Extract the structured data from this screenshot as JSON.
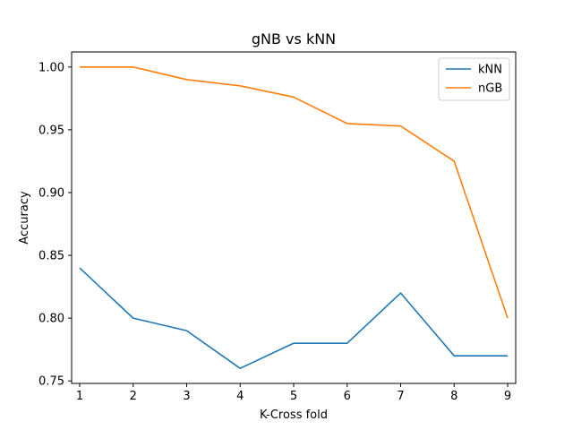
{
  "chart_data": {
    "type": "line",
    "title": "gNB vs kNN",
    "xlabel": "K-Cross fold",
    "ylabel": "Accuracy",
    "x": [
      1,
      2,
      3,
      4,
      5,
      6,
      7,
      8,
      9
    ],
    "xticks": [
      "1",
      "2",
      "3",
      "4",
      "5",
      "6",
      "7",
      "8",
      "9"
    ],
    "yticks": [
      "0.75",
      "0.80",
      "0.85",
      "0.90",
      "0.95",
      "1.00"
    ],
    "ytick_values": [
      0.75,
      0.8,
      0.85,
      0.9,
      0.95,
      1.0
    ],
    "xlim": [
      0.85,
      9.15
    ],
    "ylim": [
      0.748,
      1.012
    ],
    "grid": false,
    "legend_position": "top-right",
    "series": [
      {
        "name": "kNN",
        "color": "#1f77b4",
        "values": [
          0.84,
          0.8,
          0.79,
          0.76,
          0.78,
          0.78,
          0.82,
          0.77,
          0.77
        ]
      },
      {
        "name": "nGB",
        "color": "#ff7f0e",
        "values": [
          1.0,
          1.0,
          0.99,
          0.985,
          0.976,
          0.955,
          0.953,
          0.925,
          0.8
        ]
      }
    ]
  }
}
